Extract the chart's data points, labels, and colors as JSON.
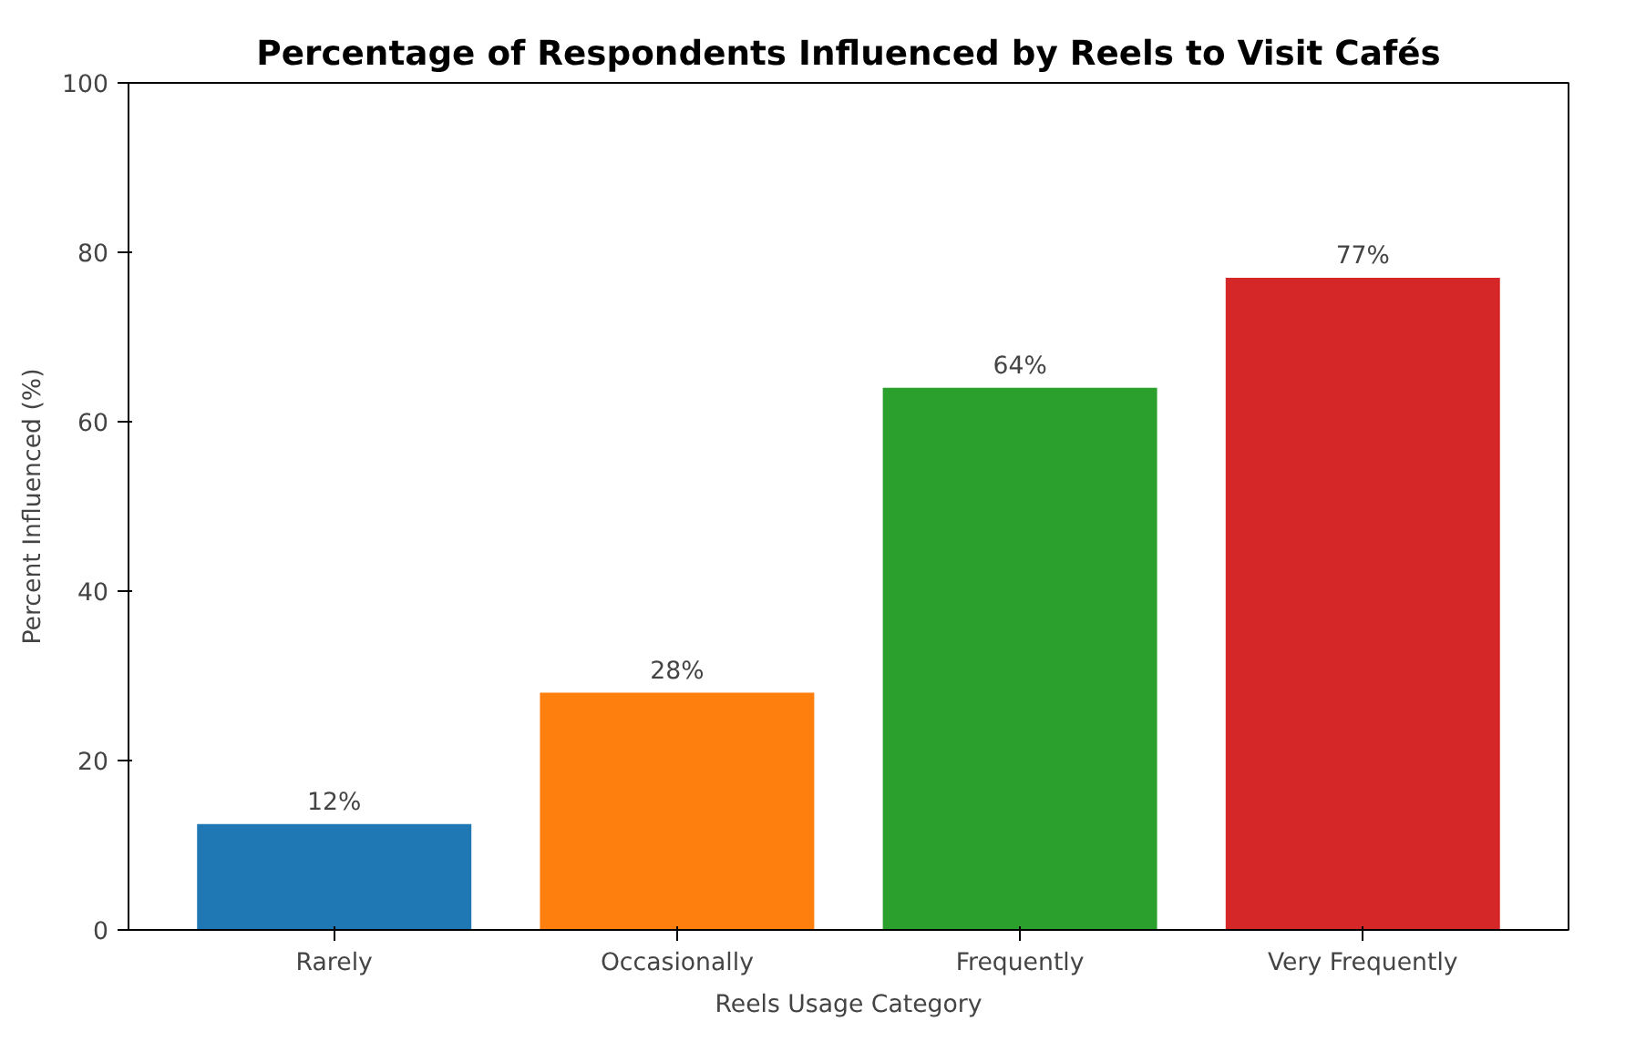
{
  "chart_data": {
    "type": "bar",
    "title": "Percentage of Respondents Influenced by Reels to Visit Cafés",
    "xlabel": "Reels Usage Category",
    "ylabel": "Percent Influenced (%)",
    "categories": [
      "Rarely",
      "Occasionally",
      "Frequently",
      "Very Frequently"
    ],
    "values": [
      12.5,
      28,
      64,
      77
    ],
    "colors": [
      "#1f77b4",
      "#ff7f0e",
      "#2ca02c",
      "#d62728"
    ],
    "value_labels": [
      "12%",
      "28%",
      "64%",
      "77%"
    ],
    "ylim": [
      0,
      100
    ],
    "yticks": [
      0,
      20,
      40,
      60,
      80,
      100
    ],
    "grid": false
  }
}
